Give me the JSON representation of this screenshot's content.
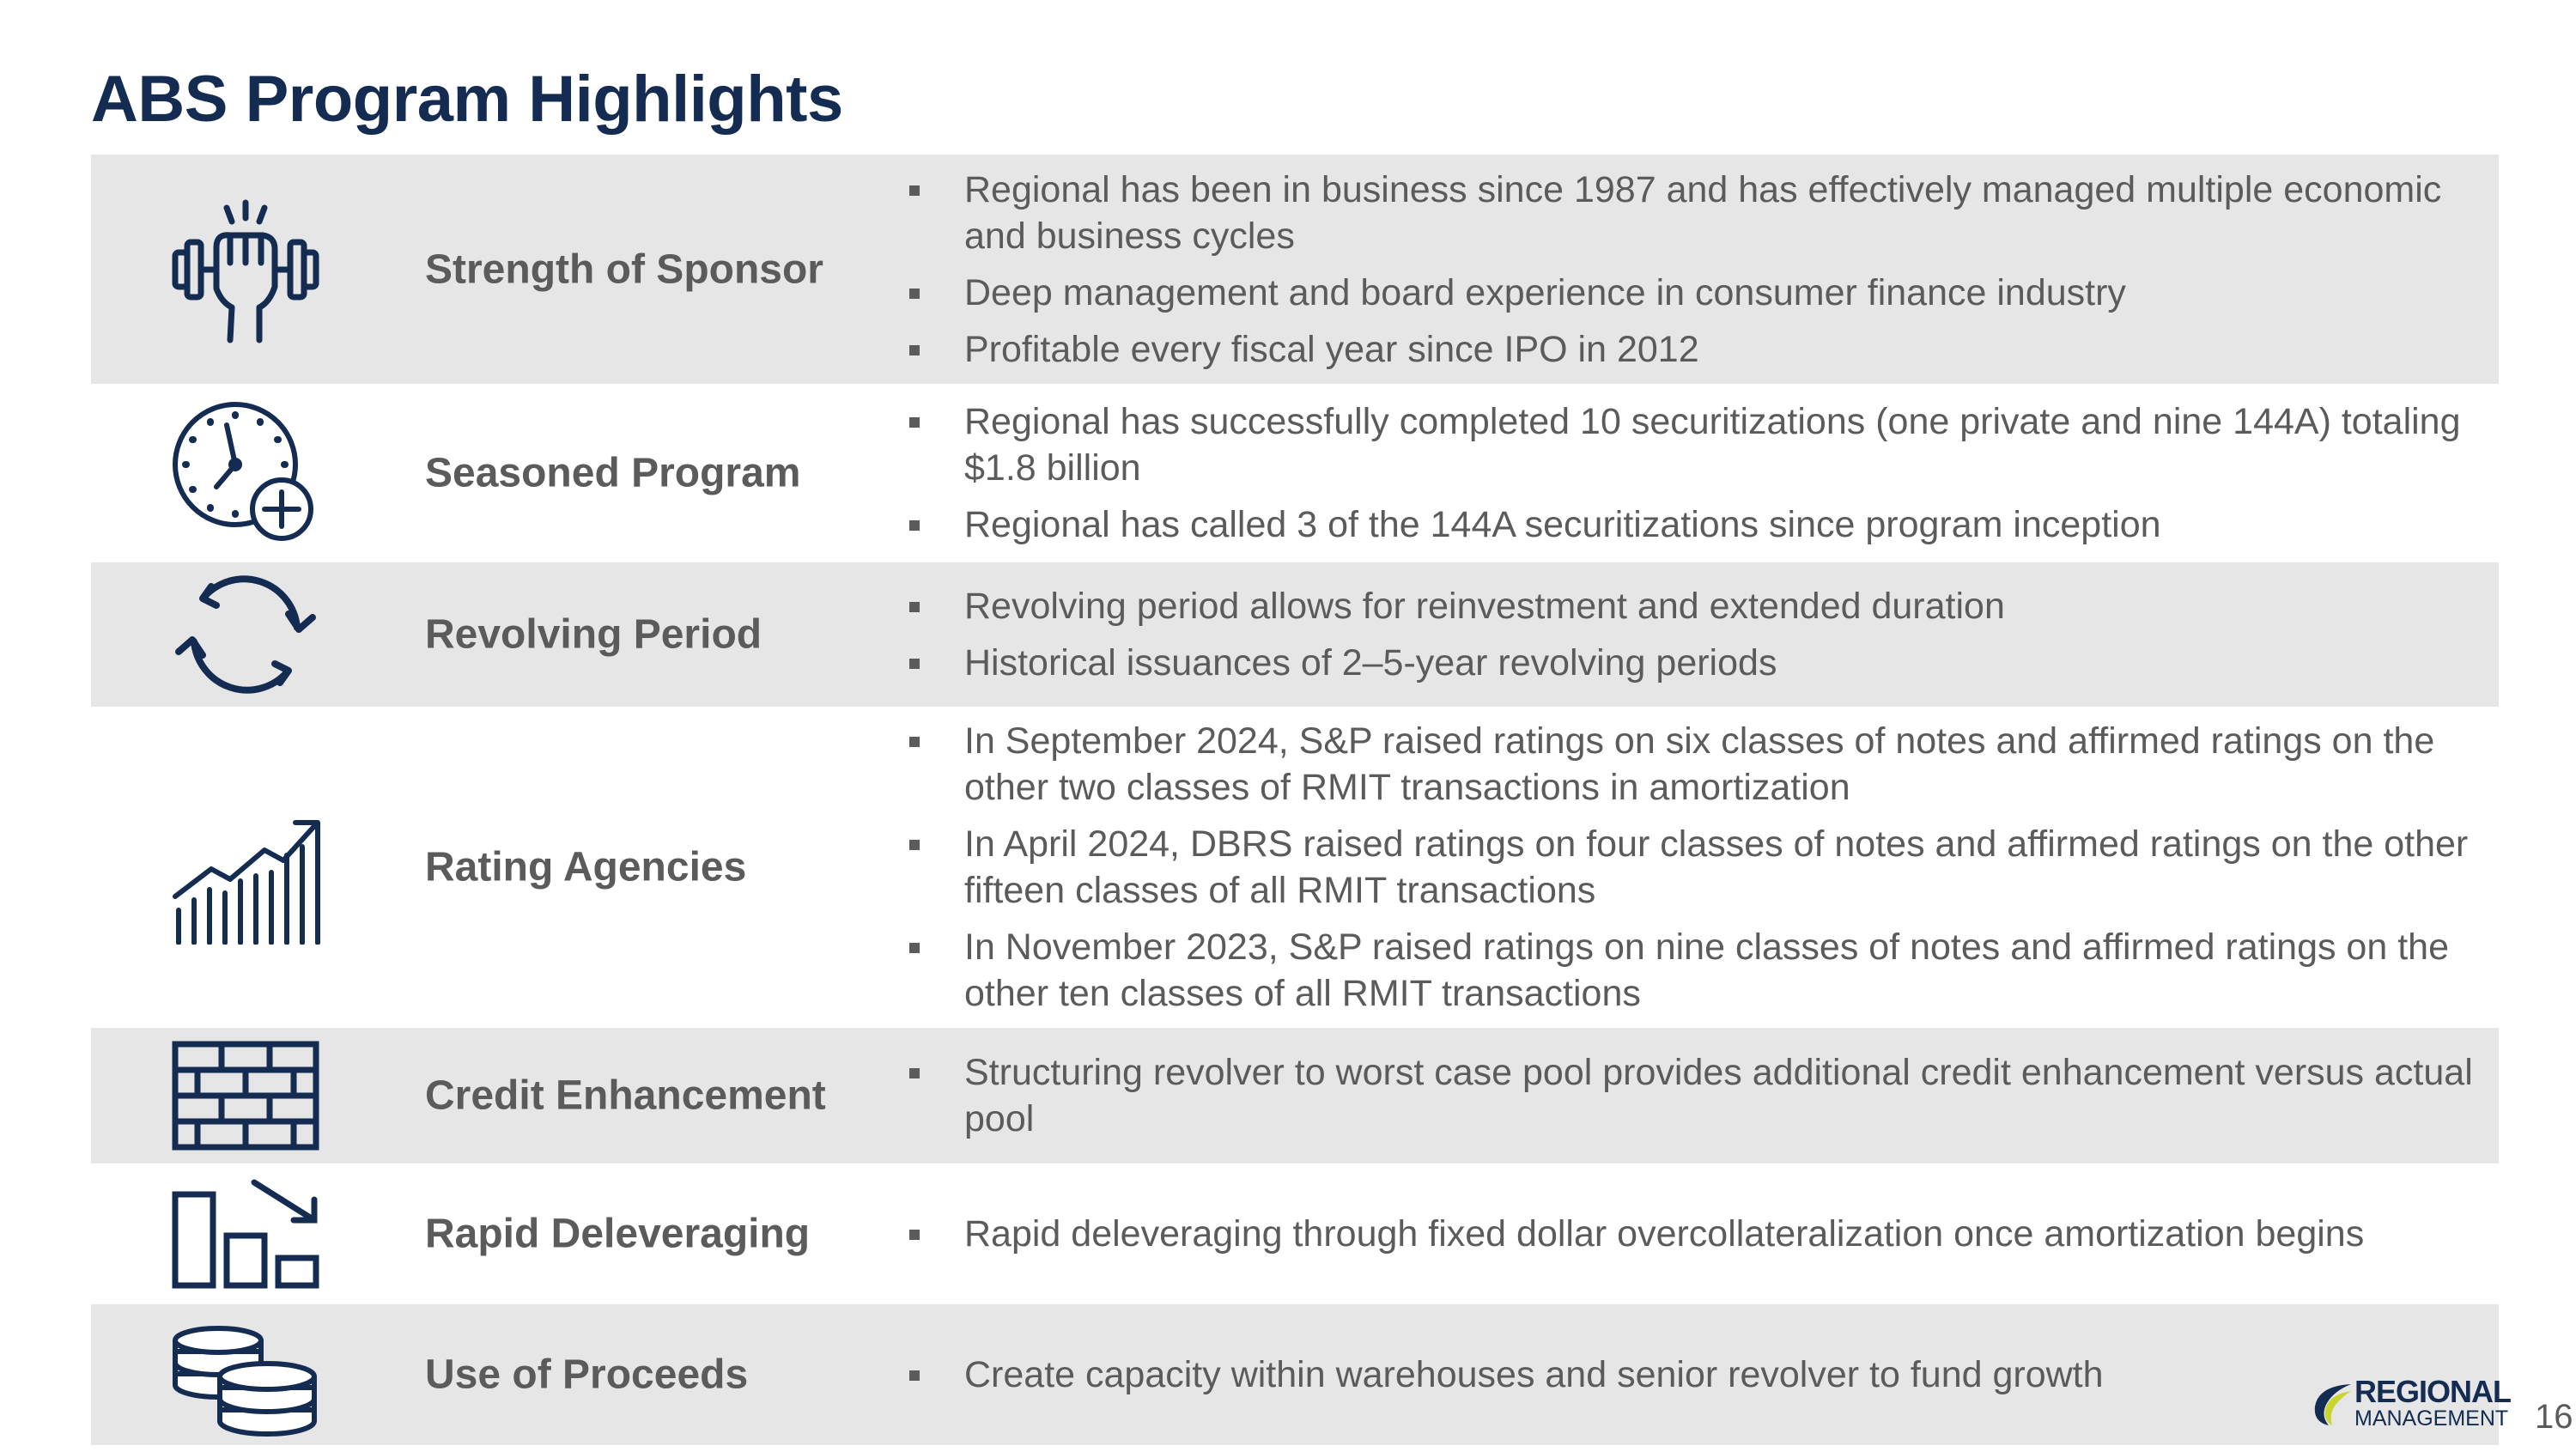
{
  "title": "ABS Program Highlights",
  "rows": [
    {
      "label": "Strength of Sponsor",
      "icon": "strength-dumbbell-icon",
      "bullets": [
        "Regional has been in business since 1987 and has effectively managed multiple economic and business cycles",
        "Deep management and board experience in consumer finance industry",
        "Profitable every fiscal year since IPO in 2012"
      ]
    },
    {
      "label": "Seasoned Program",
      "icon": "clock-plus-icon",
      "bullets": [
        "Regional has successfully completed 10 securitizations (one private and nine 144A) totaling $1.8 billion",
        "Regional has called 3 of the 144A securitizations since program inception"
      ]
    },
    {
      "label": "Revolving Period",
      "icon": "revolving-arrows-icon",
      "bullets": [
        "Revolving period allows for reinvestment and extended duration",
        "Historical issuances of 2–5-year revolving periods"
      ]
    },
    {
      "label": "Rating Agencies",
      "icon": "growth-chart-icon",
      "bullets": [
        "In September 2024, S&P raised ratings on six classes of notes and affirmed ratings on the other two classes of RMIT transactions in amortization",
        "In April 2024, DBRS raised ratings on four classes of notes and affirmed ratings on the other fifteen classes of all RMIT transactions",
        "In November 2023, S&P raised ratings on nine classes of notes and affirmed ratings on the other ten classes of all RMIT transactions"
      ]
    },
    {
      "label": "Credit Enhancement",
      "icon": "brick-wall-icon",
      "bullets": [
        "Structuring revolver to worst case pool provides additional credit enhancement versus actual pool"
      ]
    },
    {
      "label": "Rapid Deleveraging",
      "icon": "declining-bars-icon",
      "bullets": [
        "Rapid deleveraging through fixed dollar overcollateralization once amortization begins"
      ]
    },
    {
      "label": "Use of Proceeds",
      "icon": "coin-stacks-icon",
      "bullets": [
        "Create capacity within warehouses and senior revolver to fund growth"
      ]
    }
  ],
  "logo": {
    "line1": "REGIONAL",
    "line2": "MANAGEMENT"
  },
  "page_number": "16",
  "colors": {
    "title": "#142b52",
    "text": "#5b5b5b",
    "row_shade": "#e6e6e6",
    "icon": "#142b52",
    "logo_accent": "#c9d42c"
  }
}
